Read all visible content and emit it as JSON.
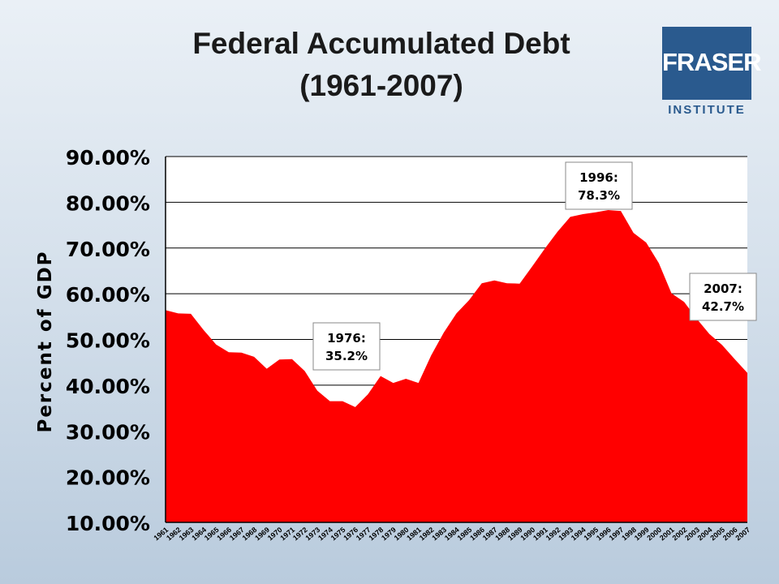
{
  "title_line1": "Federal Accumulated Debt",
  "title_line2": "(1961-2007)",
  "logo": {
    "word": "FRASER",
    "sub": "INSTITUTE",
    "color": "#2a5a8e"
  },
  "chart_data": {
    "type": "area",
    "ylabel": "Percent of GDP",
    "ylim": [
      10,
      90
    ],
    "yticks": [
      "10.00%",
      "20.00%",
      "30.00%",
      "40.00%",
      "50.00%",
      "60.00%",
      "70.00%",
      "80.00%",
      "90.00%"
    ],
    "ytick_values": [
      10,
      20,
      30,
      40,
      50,
      60,
      70,
      80,
      90
    ],
    "grid": true,
    "fill_color": "#ff0000",
    "x": [
      1961,
      1962,
      1963,
      1964,
      1965,
      1966,
      1967,
      1968,
      1969,
      1970,
      1971,
      1972,
      1973,
      1974,
      1975,
      1976,
      1977,
      1978,
      1979,
      1980,
      1981,
      1982,
      1983,
      1984,
      1985,
      1986,
      1987,
      1988,
      1989,
      1990,
      1991,
      1992,
      1993,
      1994,
      1995,
      1996,
      1997,
      1998,
      1999,
      2000,
      2001,
      2002,
      2003,
      2004,
      2005,
      2006,
      2007
    ],
    "values": [
      56.4,
      55.7,
      55.6,
      52.1,
      48.9,
      47.2,
      47.1,
      46.2,
      43.6,
      45.6,
      45.7,
      43.1,
      38.8,
      36.5,
      36.5,
      35.2,
      38.0,
      42.0,
      40.5,
      41.4,
      40.5,
      46.5,
      51.5,
      55.7,
      58.6,
      62.3,
      62.9,
      62.3,
      62.2,
      66.0,
      69.9,
      73.6,
      76.8,
      77.4,
      77.8,
      78.3,
      78.1,
      73.3,
      71.2,
      66.7,
      60.1,
      58.2,
      54.5,
      51.2,
      48.8,
      45.7,
      42.7
    ],
    "annotations": [
      {
        "line1": "1976:",
        "line2": "35.2%"
      },
      {
        "line1": "1996:",
        "line2": "78.3%"
      },
      {
        "line1": "2007:",
        "line2": "42.7%"
      }
    ]
  }
}
